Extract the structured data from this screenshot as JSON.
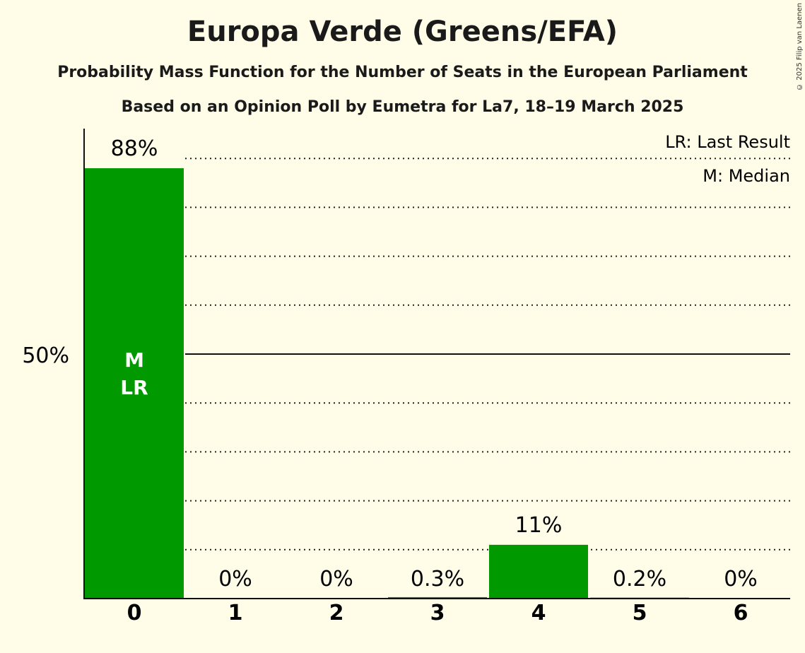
{
  "chart_data": {
    "type": "bar",
    "title": "Europa Verde (Greens/EFA)",
    "subtitle": "Probability Mass Function for the Number of Seats in the European Parliament",
    "subtitle2": "Based on an Opinion Poll by Eumetra for La7, 18–19 March 2025",
    "categories": [
      "0",
      "1",
      "2",
      "3",
      "4",
      "5",
      "6"
    ],
    "values": [
      88,
      0,
      0,
      0.3,
      11,
      0.2,
      0
    ],
    "labels": [
      "88%",
      "0%",
      "0%",
      "0.3%",
      "11%",
      "0.2%",
      "0%"
    ],
    "ylim": [
      0,
      100
    ],
    "ytick_label": "50%",
    "median_index": 0,
    "last_result_index": 0,
    "bar_markers": [
      "M",
      "LR"
    ],
    "legend": [
      "LR: Last Result",
      "M: Median"
    ],
    "legend_position": "top-right",
    "bar_color": "#009900",
    "copyright": "© 2025 Filip van Laenen"
  }
}
